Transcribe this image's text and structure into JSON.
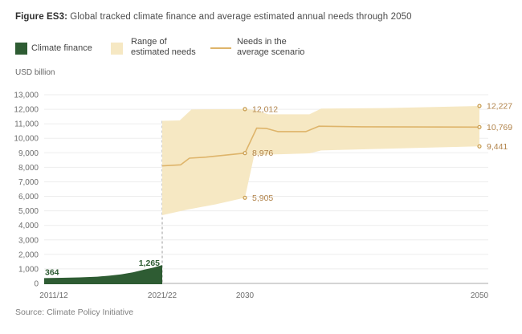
{
  "figure": {
    "title_prefix": "Figure ES3:",
    "title_rest": " Global tracked climate finance and average estimated annual needs through 2050",
    "unit_label": "USD billion",
    "source": "Source: Climate Policy Initiative"
  },
  "legend": {
    "items": [
      {
        "label": "Climate finance",
        "swatch": "green-square-icon",
        "color": "#2e5c33"
      },
      {
        "label": "Range of estimated needs",
        "swatch": "tan-square-icon",
        "color": "#f6e8c3"
      },
      {
        "label": "Needs in the average scenario",
        "swatch": "tan-line-icon",
        "color": "#deb46a"
      }
    ]
  },
  "colors": {
    "climate_finance": "#2e5c33",
    "needs_band": "#f6e8c3",
    "needs_line": "#deb46a",
    "value_label_gold": "#b1834a",
    "value_label_green": "#2e5c33",
    "dot_stroke": "#c79a4d",
    "dot_fill": "#fbf3dd",
    "gridline": "#ededed",
    "axis_line": "#c6c6c6",
    "dashed_divider": "#9b9b9b",
    "tick_text": "#6e6e6e"
  },
  "chart_data": {
    "type": "area",
    "title": "Global tracked climate finance and average estimated annual needs through 2050",
    "xlabel": "",
    "ylabel": "USD billion",
    "ylim": [
      0,
      13000
    ],
    "y_tick_step": 1000,
    "y_tick_labels": [
      "0",
      "1,000",
      "2,000",
      "3,000",
      "4,000",
      "5,000",
      "6,000",
      "7,000",
      "8,000",
      "9,000",
      "10,000",
      "11,000",
      "12,000",
      "13,000"
    ],
    "x_ticks": [
      {
        "label": "2011/12",
        "year": 2011.5
      },
      {
        "label": "2021/22",
        "year": 2021.5
      },
      {
        "label": "2030",
        "year": 2030
      },
      {
        "label": "2050",
        "year": 2050
      }
    ],
    "grid": true,
    "legend_position": "top",
    "series": [
      {
        "name": "Climate finance",
        "type": "area",
        "color": "#2e5c33",
        "points": [
          [
            2011.5,
            364
          ],
          [
            2013,
            385
          ],
          [
            2014.5,
            415
          ],
          [
            2016,
            465
          ],
          [
            2017,
            530
          ],
          [
            2018,
            620
          ],
          [
            2019,
            760
          ],
          [
            2020,
            950
          ],
          [
            2020.8,
            1100
          ],
          [
            2021.5,
            1265
          ]
        ],
        "key_values": {
          "2011/12": 364,
          "2021/22": 1265
        }
      },
      {
        "name": "Range of estimated needs",
        "type": "band",
        "fill": "#f6e8c3",
        "top": [
          [
            2021.5,
            11200
          ],
          [
            2023.3,
            11230
          ],
          [
            2024.5,
            11980
          ],
          [
            2026,
            12000
          ],
          [
            2030,
            12012
          ],
          [
            2030.8,
            11950
          ],
          [
            2032,
            11650
          ],
          [
            2035.5,
            11650
          ],
          [
            2036.5,
            12050
          ],
          [
            2042,
            12080
          ],
          [
            2050,
            12227
          ]
        ],
        "bottom": [
          [
            2021.5,
            4700
          ],
          [
            2024,
            5080
          ],
          [
            2027,
            5450
          ],
          [
            2030,
            5905
          ],
          [
            2030.8,
            8870
          ],
          [
            2033,
            8900
          ],
          [
            2035.5,
            8960
          ],
          [
            2036.5,
            9160
          ],
          [
            2040,
            9240
          ],
          [
            2050,
            9441
          ]
        ],
        "key_values": {
          "2030": {
            "high": 12012,
            "low": 5905
          },
          "2050": {
            "high": 12227,
            "low": 9441
          }
        }
      },
      {
        "name": "Needs in the average scenario",
        "type": "line",
        "color": "#deb46a",
        "points": [
          [
            2021.5,
            8100
          ],
          [
            2023.4,
            8170
          ],
          [
            2024.3,
            8630
          ],
          [
            2026,
            8700
          ],
          [
            2030,
            8976
          ],
          [
            2031,
            10700
          ],
          [
            2031.8,
            10680
          ],
          [
            2032.8,
            10460
          ],
          [
            2035.2,
            10460
          ],
          [
            2036.3,
            10830
          ],
          [
            2040,
            10790
          ],
          [
            2050,
            10769
          ]
        ],
        "key_values": {
          "2030": 8976,
          "2050": 10769
        }
      }
    ],
    "annotations": [
      {
        "text": "12,012",
        "year": 2030,
        "value": 12012,
        "color": "#b1834a",
        "dot": true
      },
      {
        "text": "8,976",
        "year": 2030,
        "value": 8976,
        "color": "#b1834a",
        "dot": true
      },
      {
        "text": "5,905",
        "year": 2030,
        "value": 5905,
        "color": "#b1834a",
        "dot": true
      },
      {
        "text": "12,227",
        "year": 2050,
        "value": 12227,
        "color": "#b1834a",
        "dot": true
      },
      {
        "text": "10,769",
        "year": 2050,
        "value": 10769,
        "color": "#b1834a",
        "dot": true
      },
      {
        "text": "9,441",
        "year": 2050,
        "value": 9441,
        "color": "#b1834a",
        "dot": true
      },
      {
        "text": "364",
        "year": 2011.5,
        "value": 364,
        "color": "#2e5c33",
        "dot": false,
        "series": "climate-finance",
        "align": "left"
      },
      {
        "text": "1,265",
        "year": 2021.5,
        "value": 1265,
        "color": "#2e5c33",
        "dot": false,
        "series": "climate-finance",
        "align": "right"
      }
    ],
    "dashed_divider": {
      "year": 2021.5,
      "value_top": 11200
    }
  }
}
